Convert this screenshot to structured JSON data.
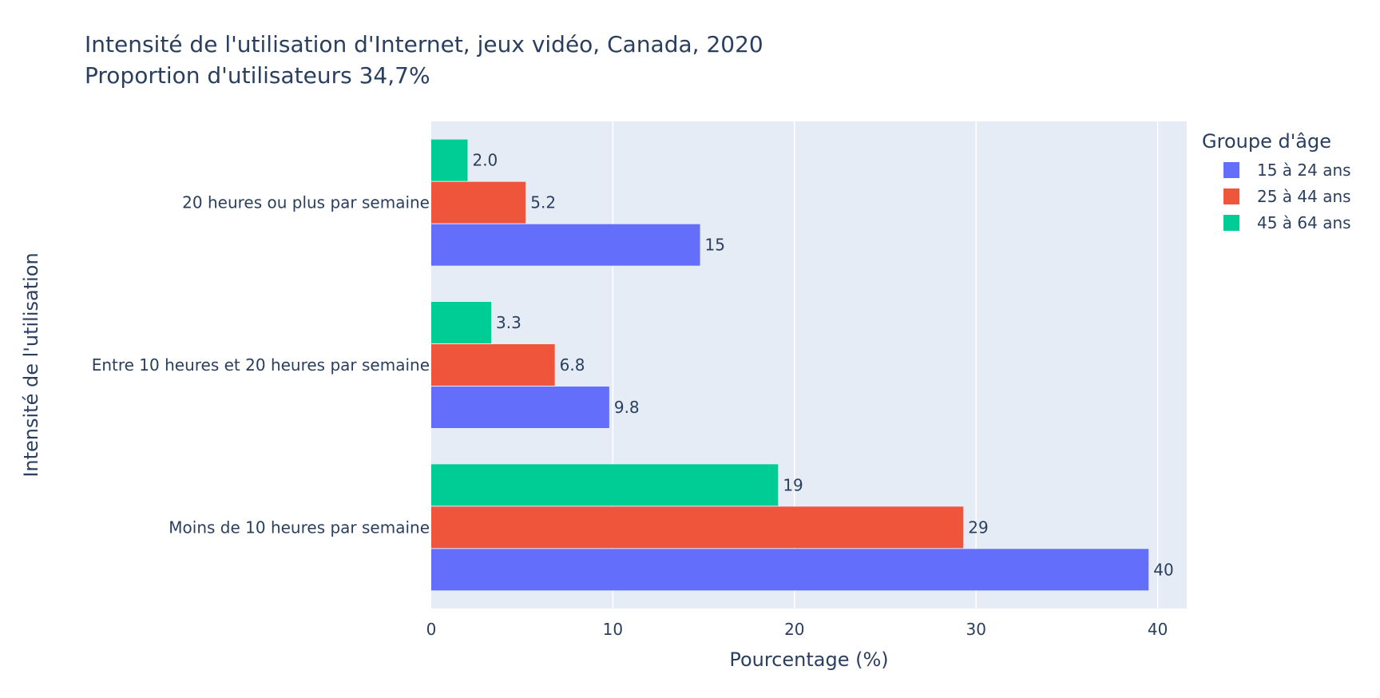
{
  "chart_data": {
    "type": "bar",
    "orientation": "horizontal",
    "title": "Intensité de l'utilisation d'Internet, jeux vidéo, Canada, 2020",
    "subtitle": "Proportion d'utilisateurs 34,7%",
    "xlabel": "Pourcentage (%)",
    "ylabel": "Intensité de l'utilisation",
    "xlim": [
      0,
      41.6
    ],
    "xticks": [
      0,
      10,
      20,
      30,
      40
    ],
    "grid": true,
    "legend_title": "Groupe d'âge",
    "legend_position": "right",
    "categories": [
      "Moins de 10 heures par semaine",
      "Entre 10 heures et 20 heures par semaine",
      "20 heures ou plus par semaine"
    ],
    "series": [
      {
        "name": "15 à 24 ans",
        "color": "#636efa",
        "values": [
          39.5,
          9.8,
          14.8
        ],
        "labels": [
          "40",
          "9.8",
          "15"
        ]
      },
      {
        "name": "25 à 44 ans",
        "color": "#ef553b",
        "values": [
          29.3,
          6.8,
          5.2
        ],
        "labels": [
          "29",
          "6.8",
          "5.2"
        ]
      },
      {
        "name": "45 à 64 ans",
        "color": "#00cc96",
        "values": [
          19.1,
          3.3,
          2.0
        ],
        "labels": [
          "19",
          "3.3",
          "2.0"
        ]
      }
    ]
  }
}
